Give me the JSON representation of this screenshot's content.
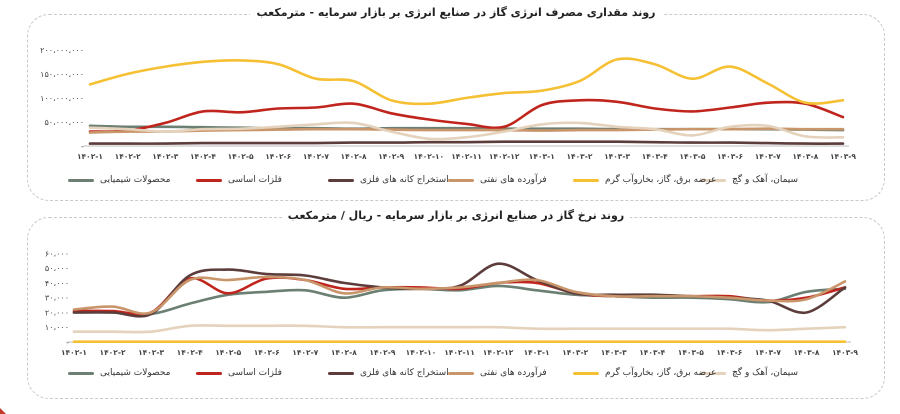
{
  "chart_data": [
    {
      "type": "line",
      "title": "روند مقداری مصرف انرژی گاز در صنایع انرژی بر بازار سرمایه - مترمکعب",
      "categories": [
        "۱۴۰۲-۱",
        "۱۴۰۲-۲",
        "۱۴۰۲-۳",
        "۱۴۰۲-۴",
        "۱۴۰۲-۵",
        "۱۴۰۲-۶",
        "۱۴۰۲-۷",
        "۱۴۰۲-۸",
        "۱۴۰۲-۹",
        "۱۴۰۲-۱۰",
        "۱۴۰۲-۱۱",
        "۱۴۰۲-۱۲",
        "۱۴۰۳-۱",
        "۱۴۰۳-۲",
        "۱۴۰۳-۳",
        "۱۴۰۳-۴",
        "۱۴۰۳-۵",
        "۱۴۰۳-۶",
        "۱۴۰۳-۷",
        "۱۴۰۳-۸",
        "۱۴۰۳-۹"
      ],
      "y_ticks": [
        0,
        50,
        100,
        150,
        200
      ],
      "y_tick_labels": [
        "-",
        "۵۰،۰۰۰،۰۰۰",
        "۱۰۰،۰۰۰،۰۰۰",
        "۱۵۰،۰۰۰،۰۰۰",
        "۲۰۰،۰۰۰،۰۰۰"
      ],
      "ylim": [
        0,
        210
      ],
      "series": [
        {
          "name": "محصولات شیمیایی",
          "color": "#6b7f72",
          "values": [
            42,
            40,
            40,
            39,
            38,
            37,
            37,
            36,
            37,
            37,
            37,
            36,
            36,
            36,
            35,
            35,
            35,
            35,
            35,
            34,
            33
          ]
        },
        {
          "name": "فلزات اساسی",
          "color": "#c0251d",
          "values": [
            30,
            32,
            48,
            72,
            70,
            78,
            80,
            88,
            68,
            55,
            46,
            40,
            85,
            95,
            92,
            78,
            72,
            80,
            90,
            88,
            60
          ]
        },
        {
          "name": "استخراج کانه های فلزی",
          "color": "#5c3d3c",
          "values": [
            5,
            5,
            5,
            6,
            6,
            6,
            6,
            7,
            7,
            8,
            8,
            9,
            9,
            9,
            9,
            8,
            7,
            7,
            6,
            5,
            5
          ]
        },
        {
          "name": "فرآورده های نفتی",
          "color": "#c9956a",
          "values": [
            28,
            30,
            30,
            32,
            33,
            34,
            35,
            35,
            34,
            33,
            33,
            33,
            32,
            33,
            33,
            34,
            35,
            35,
            36,
            35,
            35
          ]
        },
        {
          "name": "عرضه برق، گاز، بخاروآب گرم",
          "color": "#f5c033",
          "values": [
            128,
            150,
            165,
            175,
            178,
            170,
            140,
            135,
            95,
            88,
            100,
            110,
            115,
            135,
            180,
            170,
            140,
            165,
            130,
            90,
            95
          ]
        },
        {
          "name": "سیمان، آهک و گچ",
          "color": "#e4d2bc",
          "values": [
            38,
            35,
            30,
            35,
            36,
            40,
            45,
            48,
            30,
            15,
            18,
            30,
            45,
            48,
            40,
            35,
            22,
            40,
            42,
            20,
            18
          ]
        }
      ]
    },
    {
      "type": "line",
      "title": "روند نرخ گاز در صنایع انرژی بر بازار سرمایه - ریال / مترمکعب",
      "categories": [
        "۱۴۰۲-۱",
        "۱۴۰۲-۲",
        "۱۴۰۲-۳",
        "۱۴۰۲-۴",
        "۱۴۰۲-۵",
        "۱۴۰۲-۶",
        "۱۴۰۲-۷",
        "۱۴۰۲-۸",
        "۱۴۰۲-۹",
        "۱۴۰۲-۱۰",
        "۱۴۰۲-۱۱",
        "۱۴۰۲-۱۲",
        "۱۴۰۳-۱",
        "۱۴۰۳-۲",
        "۱۴۰۳-۳",
        "۱۴۰۳-۴",
        "۱۴۰۳-۵",
        "۱۴۰۳-۶",
        "۱۴۰۳-۷",
        "۱۴۰۳-۸",
        "۱۴۰۳-۹"
      ],
      "y_ticks": [
        0,
        10000,
        20000,
        30000,
        40000,
        50000,
        60000
      ],
      "y_tick_labels": [
        "-",
        "۱۰،۰۰۰",
        "۲۰،۰۰۰",
        "۳۰،۰۰۰",
        "۴۰،۰۰۰",
        "۵۰،۰۰۰",
        "۶۰،۰۰۰"
      ],
      "ylim": [
        0,
        65000
      ],
      "series": [
        {
          "name": "محصولات شیمیایی",
          "color": "#6b7f72",
          "values": [
            20000,
            20000,
            19000,
            26000,
            32000,
            34000,
            35000,
            30000,
            35000,
            36000,
            35000,
            38000,
            35000,
            32000,
            31000,
            30000,
            30000,
            29000,
            27000,
            34000,
            36000
          ]
        },
        {
          "name": "فلزات اساسی",
          "color": "#c0251d",
          "values": [
            21000,
            21000,
            20000,
            43000,
            33000,
            43000,
            42000,
            36000,
            37000,
            37000,
            36000,
            40000,
            40000,
            33000,
            31000,
            31000,
            31000,
            31000,
            28000,
            30000,
            37000
          ]
        },
        {
          "name": "استخراج کانه های فلزی",
          "color": "#5c3d3c",
          "values": [
            20000,
            20000,
            19000,
            45000,
            49000,
            46000,
            45000,
            40000,
            37000,
            36000,
            38000,
            53000,
            42000,
            33000,
            32000,
            32000,
            31000,
            30000,
            28000,
            20000,
            37000
          ]
        },
        {
          "name": "فرآورده های نفتی",
          "color": "#c9956a",
          "values": [
            22000,
            24000,
            20000,
            42000,
            42000,
            44000,
            42000,
            33000,
            37000,
            36000,
            37000,
            40000,
            42000,
            34000,
            31000,
            31000,
            31000,
            30000,
            28000,
            29000,
            41000
          ]
        },
        {
          "name": "عرضه برق، گاز، بخاروآب گرم",
          "color": "#f5c033",
          "values": [
            200,
            200,
            200,
            200,
            200,
            200,
            200,
            200,
            200,
            200,
            200,
            200,
            200,
            200,
            200,
            200,
            200,
            200,
            200,
            200,
            200
          ]
        },
        {
          "name": "سیمان، آهک و گچ",
          "color": "#e4d2bc",
          "values": [
            7000,
            7000,
            7000,
            11000,
            11000,
            11000,
            11000,
            10000,
            10000,
            10000,
            10000,
            10000,
            9000,
            9000,
            9000,
            9000,
            9000,
            9000,
            8000,
            9000,
            10000
          ]
        }
      ]
    }
  ]
}
